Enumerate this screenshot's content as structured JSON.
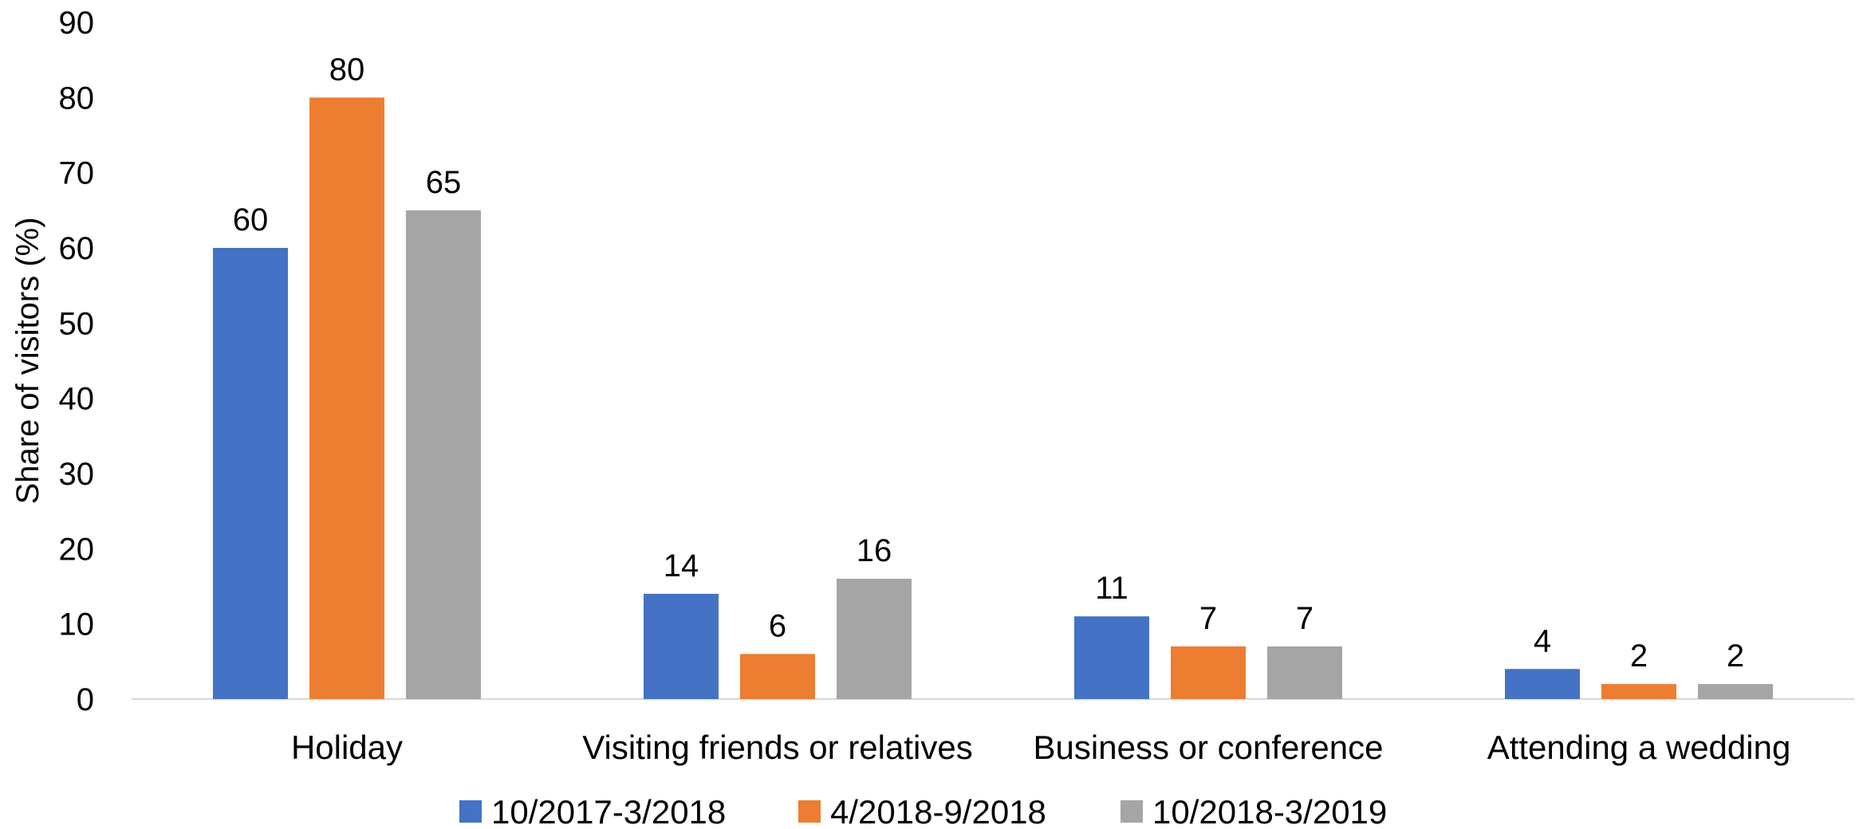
{
  "chart_data": {
    "type": "bar",
    "title": "",
    "xlabel": "",
    "ylabel": "Share of visitors (%)",
    "ylim": [
      0,
      90
    ],
    "yticks": [
      0,
      10,
      20,
      30,
      40,
      50,
      60,
      70,
      80,
      90
    ],
    "grid": false,
    "legend_position": "bottom",
    "categories": [
      "Holiday",
      "Visiting friends or relatives",
      "Business or conference",
      "Attending a wedding"
    ],
    "series": [
      {
        "name": "10/2017-3/2018",
        "color": "#4472C4",
        "values": [
          60,
          14,
          11,
          4
        ]
      },
      {
        "name": "4/2018-9/2018",
        "color": "#ED7D31",
        "values": [
          80,
          6,
          7,
          2
        ]
      },
      {
        "name": "10/2018-3/2019",
        "color": "#A5A5A5",
        "values": [
          65,
          16,
          7,
          2
        ]
      }
    ]
  }
}
